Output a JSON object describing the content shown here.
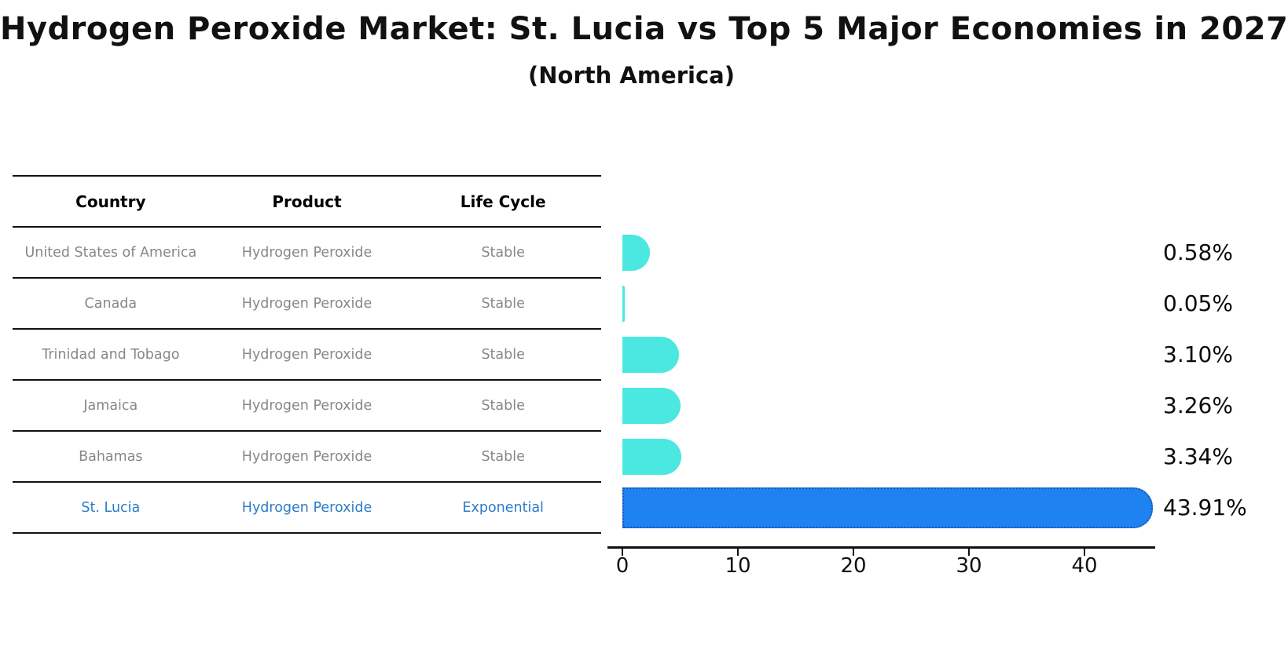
{
  "title": "Hydrogen Peroxide Market: St. Lucia vs Top 5 Major Economies in 2027",
  "subtitle": "(North America)",
  "table": {
    "headers": [
      "Country",
      "Product",
      "Life Cycle"
    ],
    "rows": [
      {
        "country": "United States of America",
        "product": "Hydrogen Peroxide",
        "life_cycle": "Stable",
        "highlight": false
      },
      {
        "country": "Canada",
        "product": "Hydrogen Peroxide",
        "life_cycle": "Stable",
        "highlight": false
      },
      {
        "country": "Trinidad and Tobago",
        "product": "Hydrogen Peroxide",
        "life_cycle": "Stable",
        "highlight": false
      },
      {
        "country": "Jamaica",
        "product": "Hydrogen Peroxide",
        "life_cycle": "Stable",
        "highlight": false
      },
      {
        "country": "Bahamas",
        "product": "Hydrogen Peroxide",
        "life_cycle": "Stable",
        "highlight": false
      },
      {
        "country": "St. Lucia",
        "product": "Hydrogen Peroxide",
        "life_cycle": "Exponential",
        "highlight": true
      }
    ]
  },
  "chart_data": {
    "type": "bar",
    "orientation": "horizontal",
    "categories": [
      "United States of America",
      "Canada",
      "Trinidad and Tobago",
      "Jamaica",
      "Bahamas",
      "St. Lucia"
    ],
    "values": [
      0.58,
      0.05,
      3.1,
      3.26,
      3.34,
      43.91
    ],
    "value_labels": [
      "0.58%",
      "0.05%",
      "3.10%",
      "3.26%",
      "3.34%",
      "43.91%"
    ],
    "highlight_index": 5,
    "x_ticks": [
      0,
      10,
      20,
      30,
      40
    ],
    "x_tick_labels": [
      "0",
      "10",
      "20",
      "30",
      "40"
    ],
    "xlim": [
      0,
      46
    ],
    "grid": false,
    "legend": null,
    "colors": {
      "bar_default": "#4AE8E0",
      "bar_highlight": "#1E82F0",
      "bar_highlight_border": "#1A55B8",
      "highlight_text": "#2B7CC9",
      "row_text": "#878787",
      "axis": "#111111"
    }
  }
}
